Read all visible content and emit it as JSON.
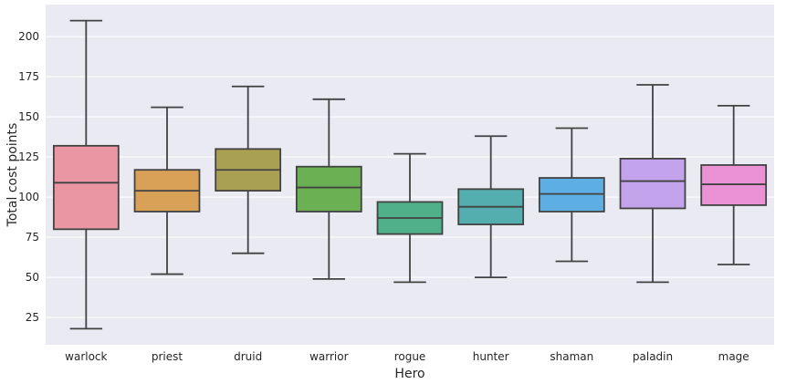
{
  "chart_data": {
    "type": "box",
    "xlabel": "Hero",
    "ylabel": "Total cost points",
    "ylim": [
      8,
      220
    ],
    "yticks": [
      25,
      50,
      75,
      100,
      125,
      150,
      175,
      200
    ],
    "grid": true,
    "background": "#EAEAF2",
    "categories": [
      "warlock",
      "priest",
      "druid",
      "warrior",
      "rogue",
      "hunter",
      "shaman",
      "paladin",
      "mage"
    ],
    "boxes": [
      {
        "category": "warlock",
        "min": 18,
        "q1": 80,
        "median": 109,
        "q3": 132,
        "max": 210,
        "color": "#EA96A3"
      },
      {
        "category": "priest",
        "min": 52,
        "q1": 91,
        "median": 104,
        "q3": 117,
        "max": 156,
        "color": "#D9A057"
      },
      {
        "category": "druid",
        "min": 65,
        "q1": 104,
        "median": 117,
        "q3": 130,
        "max": 169,
        "color": "#A9A052"
      },
      {
        "category": "warrior",
        "min": 49,
        "q1": 91,
        "median": 106,
        "q3": 119,
        "max": 161,
        "color": "#6BB052"
      },
      {
        "category": "rogue",
        "min": 47,
        "q1": 77,
        "median": 87,
        "q3": 97,
        "max": 127,
        "color": "#50B089"
      },
      {
        "category": "hunter",
        "min": 50,
        "q1": 83,
        "median": 94,
        "q3": 105,
        "max": 138,
        "color": "#54ADAE"
      },
      {
        "category": "shaman",
        "min": 60,
        "q1": 91,
        "median": 102,
        "q3": 112,
        "max": 143,
        "color": "#5DAEE2"
      },
      {
        "category": "paladin",
        "min": 47,
        "q1": 93,
        "median": 110,
        "q3": 124,
        "max": 170,
        "color": "#C3A4EC"
      },
      {
        "category": "mage",
        "min": 58,
        "q1": 95,
        "median": 108,
        "q3": 120,
        "max": 157,
        "color": "#EA92D5"
      }
    ]
  }
}
